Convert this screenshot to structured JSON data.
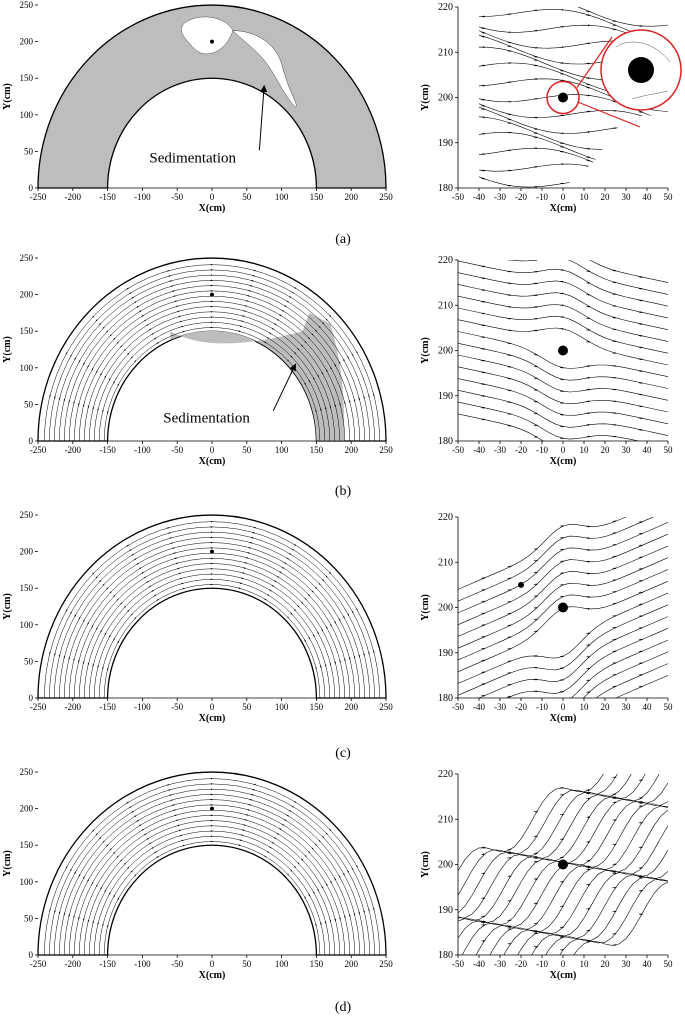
{
  "figure": {
    "panels": [
      {
        "id": "a",
        "caption": "(a)",
        "left": {
          "xlabel": "X(cm)",
          "ylabel": "Y(cm)",
          "xticks": [
            "-250",
            "-200",
            "-150",
            "-100",
            "-50",
            "0",
            "50",
            "100",
            "150",
            "200",
            "250"
          ],
          "yticks": [
            "0",
            "50",
            "100",
            "150",
            "200",
            "250"
          ],
          "annotation": "Sedimentation",
          "sedimentation": "full"
        },
        "right": {
          "xlabel": "X(cm)",
          "ylabel": "Y(cm)",
          "xticks": [
            "-50",
            "-40",
            "-30",
            "-20",
            "-10",
            "0",
            "10",
            "20",
            "30",
            "40",
            "50"
          ],
          "yticks": [
            "180",
            "190",
            "200",
            "210",
            "220"
          ],
          "inset": true
        }
      },
      {
        "id": "b",
        "caption": "(b)",
        "left": {
          "xlabel": "X(cm)",
          "ylabel": "Y(cm)",
          "xticks": [
            "-250",
            "-200",
            "-150",
            "-100",
            "-50",
            "0",
            "50",
            "100",
            "150",
            "200",
            "250"
          ],
          "yticks": [
            "0",
            "50",
            "100",
            "150",
            "200",
            "250"
          ],
          "annotation": "Sedimentation",
          "sedimentation": "partial"
        },
        "right": {
          "xlabel": "X(cm)",
          "ylabel": "Y(cm)",
          "xticks": [
            "-50",
            "-40",
            "-30",
            "-20",
            "-10",
            "0",
            "10",
            "20",
            "30",
            "40",
            "50"
          ],
          "yticks": [
            "180",
            "190",
            "200",
            "210",
            "220"
          ]
        }
      },
      {
        "id": "c",
        "caption": "(c)",
        "left": {
          "xlabel": "X(cm)",
          "ylabel": "Y(cm)",
          "xticks": [
            "-250",
            "-200",
            "-150",
            "-100",
            "-50",
            "0",
            "50",
            "100",
            "150",
            "200",
            "250"
          ],
          "yticks": [
            "0",
            "50",
            "100",
            "150",
            "200",
            "250"
          ],
          "sedimentation": "none"
        },
        "right": {
          "xlabel": "X(cm)",
          "ylabel": "Y(cm)",
          "xticks": [
            "-50",
            "-40",
            "-30",
            "-20",
            "-10",
            "0",
            "10",
            "20",
            "30",
            "40",
            "50"
          ],
          "yticks": [
            "180",
            "190",
            "200",
            "210",
            "220"
          ]
        }
      },
      {
        "id": "d",
        "caption": "(d)",
        "left": {
          "xlabel": "X(cm)",
          "ylabel": "Y(cm)",
          "xticks": [
            "-250",
            "-200",
            "-150",
            "-100",
            "-50",
            "0",
            "50",
            "100",
            "150",
            "200",
            "250"
          ],
          "yticks": [
            "0",
            "50",
            "100",
            "150",
            "200",
            "250"
          ],
          "sedimentation": "none"
        },
        "right": {
          "xlabel": "X(cm)",
          "ylabel": "Y(cm)",
          "xticks": [
            "-50",
            "-40",
            "-30",
            "-20",
            "-10",
            "0",
            "10",
            "20",
            "30",
            "40",
            "50"
          ],
          "yticks": [
            "180",
            "190",
            "200",
            "210",
            "220"
          ]
        }
      }
    ]
  }
}
